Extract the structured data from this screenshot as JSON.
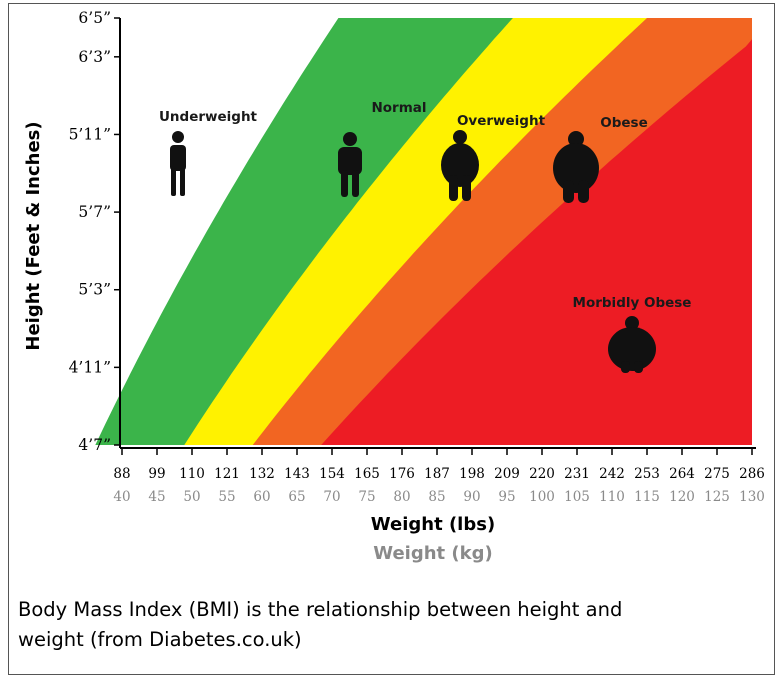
{
  "chart_data": {
    "type": "area",
    "title": "",
    "xlabel": "Weight (lbs)",
    "xlabel_secondary": "Weight (kg)",
    "ylabel": "Height (Feet & Inches)",
    "x_ticks_lbs": [
      "88",
      "99",
      "110",
      "121",
      "132",
      "143",
      "154",
      "165",
      "176",
      "187",
      "198",
      "209",
      "220",
      "231",
      "242",
      "253",
      "264",
      "275",
      "286"
    ],
    "x_ticks_kg": [
      "40",
      "45",
      "50",
      "55",
      "60",
      "65",
      "70",
      "75",
      "80",
      "85",
      "90",
      "95",
      "100",
      "105",
      "110",
      "115",
      "120",
      "125",
      "130"
    ],
    "y_ticks": [
      "4’7”",
      "4’11”",
      "5’3”",
      "5’7”",
      "5’11”",
      "6’3”",
      "6’5”"
    ],
    "y_tick_inches": [
      55,
      59,
      63,
      67,
      71,
      75,
      77
    ],
    "xlim_lbs": [
      88,
      286
    ],
    "ylim_inches": [
      55,
      77
    ],
    "grid": false,
    "zones": [
      {
        "name": "Underweight",
        "color": "#ffffff",
        "bmi_range": [
          0,
          18.5
        ]
      },
      {
        "name": "Normal",
        "color": "#3bb44a",
        "bmi_range": [
          18.5,
          25
        ]
      },
      {
        "name": "Overweight",
        "color": "#fff200",
        "bmi_range": [
          25,
          30
        ]
      },
      {
        "name": "Obese",
        "color": "#f26522",
        "bmi_range": [
          30,
          35
        ]
      },
      {
        "name": "Morbidly Obese",
        "color": "#ed1c24",
        "bmi_range": [
          35,
          100
        ]
      }
    ],
    "zone_boundaries_bmi": [
      18.5,
      25,
      30,
      35
    ]
  },
  "caption": "Body Mass Index (BMI) is the relationship between height and weight (from Diabetes.co.uk)",
  "caption_line1": "Body Mass Index (BMI) is the relationship between height and",
  "caption_line2": "weight (from Diabetes.co.uk)",
  "figure_icons": [
    "underweight-person-icon",
    "normal-person-icon",
    "overweight-person-icon",
    "obese-person-icon",
    "morbidly-obese-person-icon"
  ]
}
